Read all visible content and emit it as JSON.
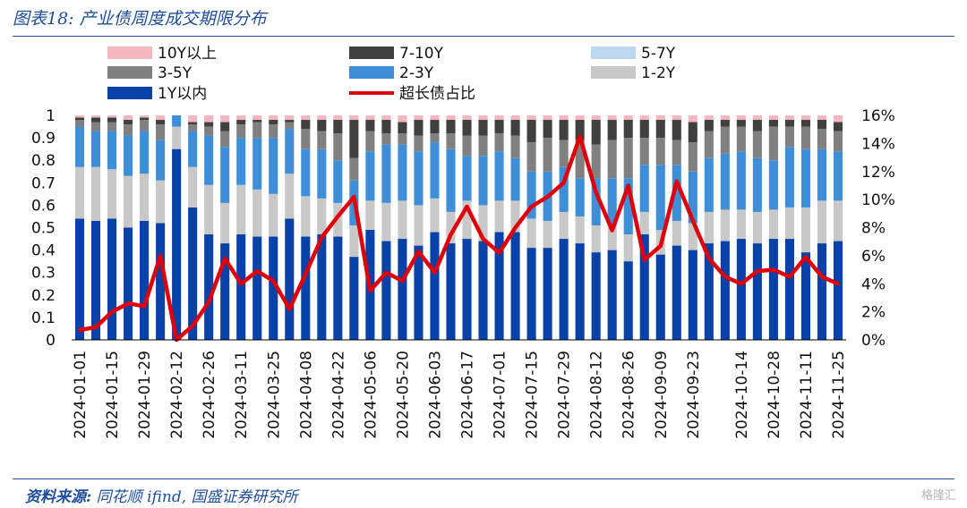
{
  "header": {
    "title": "图表18:  产业债周度成交期限分布"
  },
  "footer": {
    "source_label": "资料来源:",
    "source_text": " 同花顺 ifind, 国盛证券研究所",
    "watermark": "格隆汇"
  },
  "colors": {
    "10Y以上": "#f4b6bf",
    "7-10Y": "#404040",
    "5-7Y": "#bcd7ef",
    "3-5Y": "#808080",
    "2-3Y": "#3f8fd8",
    "1-2Y": "#c8c8c8",
    "1Y以内": "#0841a8",
    "超长债占比": "#e0000a",
    "rule": "#1f4e9b"
  },
  "chart_data": {
    "type": "bar",
    "subtype": "stacked-100-with-line-secondary-axis",
    "title": "",
    "categories": [
      "2024-01-01",
      "2024-01-08",
      "2024-01-15",
      "2024-01-22",
      "2024-01-29",
      "2024-02-05",
      "2024-02-12",
      "2024-02-19",
      "2024-02-26",
      "2024-03-04",
      "2024-03-11",
      "2024-03-18",
      "2024-03-25",
      "2024-04-01",
      "2024-04-08",
      "2024-04-15",
      "2024-04-22",
      "2024-04-29",
      "2024-05-06",
      "2024-05-13",
      "2024-05-20",
      "2024-05-27",
      "2024-06-03",
      "2024-06-10",
      "2024-06-17",
      "2024-06-24",
      "2024-07-01",
      "2024-07-08",
      "2024-07-15",
      "2024-07-22",
      "2024-07-29",
      "2024-08-05",
      "2024-08-12",
      "2024-08-19",
      "2024-08-26",
      "2024-09-02",
      "2024-09-09",
      "2024-09-16",
      "2024-09-23",
      "2024-09-30",
      "2024-10-07",
      "2024-10-14",
      "2024-10-21",
      "2024-10-28",
      "2024-11-04",
      "2024-11-11",
      "2024-11-18",
      "2024-11-25"
    ],
    "x_tick_labels": [
      "2024-01-01",
      "2024-01-15",
      "2024-01-29",
      "2024-02-12",
      "2024-02-26",
      "2024-03-11",
      "2024-03-25",
      "2024-04-08",
      "2024-04-22",
      "2024-05-06",
      "2024-05-20",
      "2024-06-03",
      "2024-06-17",
      "2024-07-01",
      "2024-07-15",
      "2024-07-29",
      "2024-08-12",
      "2024-08-26",
      "2024-09-09",
      "2024-09-23",
      "2024-10-14",
      "2024-10-28",
      "2024-11-11",
      "2024-11-25"
    ],
    "ylim": [
      0,
      1
    ],
    "y_ticks": [
      "0",
      "0.1",
      "0.2",
      "0.3",
      "0.4",
      "0.5",
      "0.6",
      "0.7",
      "0.8",
      "0.9",
      "1"
    ],
    "y2lim": [
      0,
      0.16
    ],
    "y2_ticks": [
      "0%",
      "2%",
      "4%",
      "6%",
      "8%",
      "10%",
      "12%",
      "14%",
      "16%"
    ],
    "legend_position": "top",
    "series": [
      {
        "name": "1Y以内",
        "values": [
          0.54,
          0.53,
          0.54,
          0.5,
          0.53,
          0.52,
          0.85,
          0.59,
          0.47,
          0.43,
          0.47,
          0.46,
          0.46,
          0.54,
          0.46,
          0.47,
          0.46,
          0.37,
          0.49,
          0.44,
          0.45,
          0.42,
          0.48,
          0.43,
          0.45,
          0.44,
          0.48,
          0.48,
          0.41,
          0.41,
          0.45,
          0.43,
          0.39,
          0.4,
          0.35,
          0.47,
          0.38,
          0.42,
          0.4,
          0.43,
          0.44,
          0.45,
          0.43,
          0.45,
          0.45,
          0.39,
          0.43,
          0.44
        ]
      },
      {
        "name": "1-2Y",
        "values": [
          0.23,
          0.24,
          0.22,
          0.23,
          0.21,
          0.19,
          0.1,
          0.18,
          0.22,
          0.18,
          0.22,
          0.21,
          0.19,
          0.2,
          0.18,
          0.16,
          0.15,
          0.14,
          0.13,
          0.17,
          0.17,
          0.18,
          0.15,
          0.14,
          0.17,
          0.16,
          0.14,
          0.14,
          0.13,
          0.12,
          0.12,
          0.12,
          0.12,
          0.11,
          0.12,
          0.1,
          0.11,
          0.11,
          0.12,
          0.14,
          0.14,
          0.13,
          0.14,
          0.13,
          0.14,
          0.2,
          0.19,
          0.18
        ]
      },
      {
        "name": "2-3Y",
        "values": [
          0.18,
          0.16,
          0.17,
          0.18,
          0.19,
          0.18,
          0.05,
          0.16,
          0.22,
          0.25,
          0.21,
          0.23,
          0.25,
          0.2,
          0.21,
          0.22,
          0.19,
          0.2,
          0.22,
          0.26,
          0.25,
          0.24,
          0.25,
          0.28,
          0.2,
          0.22,
          0.22,
          0.19,
          0.21,
          0.22,
          0.2,
          0.17,
          0.21,
          0.21,
          0.25,
          0.21,
          0.29,
          0.25,
          0.23,
          0.24,
          0.25,
          0.26,
          0.24,
          0.22,
          0.27,
          0.26,
          0.23,
          0.22
        ]
      },
      {
        "name": "3-5Y",
        "values": [
          0.03,
          0.04,
          0.04,
          0.05,
          0.05,
          0.07,
          0.0,
          0.03,
          0.04,
          0.07,
          0.06,
          0.07,
          0.06,
          0.03,
          0.09,
          0.08,
          0.12,
          0.1,
          0.09,
          0.05,
          0.05,
          0.07,
          0.04,
          0.07,
          0.09,
          0.09,
          0.08,
          0.1,
          0.13,
          0.15,
          0.12,
          0.17,
          0.15,
          0.17,
          0.18,
          0.12,
          0.12,
          0.11,
          0.13,
          0.12,
          0.12,
          0.11,
          0.12,
          0.15,
          0.09,
          0.1,
          0.09,
          0.09
        ]
      },
      {
        "name": "5-7Y",
        "values": [
          0.0,
          0.0,
          0.0,
          0.0,
          0.0,
          0.0,
          0.0,
          0.0,
          0.0,
          0.0,
          0.0,
          0.0,
          0.0,
          0.0,
          0.0,
          0.0,
          0.0,
          0.0,
          0.0,
          0.0,
          0.0,
          0.0,
          0.0,
          0.0,
          0.0,
          0.0,
          0.0,
          0.0,
          0.0,
          0.0,
          0.0,
          0.0,
          0.0,
          0.0,
          0.0,
          0.0,
          0.0,
          0.0,
          0.0,
          0.0,
          0.0,
          0.0,
          0.0,
          0.0,
          0.0,
          0.0,
          0.0,
          0.0
        ]
      },
      {
        "name": "7-10Y",
        "values": [
          0.01,
          0.02,
          0.02,
          0.02,
          0.01,
          0.02,
          0.0,
          0.01,
          0.02,
          0.04,
          0.02,
          0.01,
          0.02,
          0.01,
          0.04,
          0.05,
          0.06,
          0.17,
          0.05,
          0.06,
          0.05,
          0.07,
          0.06,
          0.06,
          0.07,
          0.07,
          0.06,
          0.07,
          0.1,
          0.08,
          0.09,
          0.09,
          0.11,
          0.09,
          0.08,
          0.08,
          0.08,
          0.09,
          0.09,
          0.05,
          0.03,
          0.03,
          0.05,
          0.03,
          0.03,
          0.03,
          0.04,
          0.04
        ]
      },
      {
        "name": "10Y以上",
        "values": [
          0.01,
          0.01,
          0.01,
          0.02,
          0.01,
          0.02,
          0.0,
          0.03,
          0.03,
          0.03,
          0.02,
          0.02,
          0.02,
          0.02,
          0.02,
          0.02,
          0.02,
          0.02,
          0.02,
          0.02,
          0.03,
          0.02,
          0.02,
          0.02,
          0.02,
          0.02,
          0.02,
          0.02,
          0.02,
          0.02,
          0.02,
          0.02,
          0.02,
          0.02,
          0.02,
          0.02,
          0.02,
          0.02,
          0.03,
          0.02,
          0.02,
          0.02,
          0.02,
          0.02,
          0.02,
          0.02,
          0.02,
          0.03
        ]
      }
    ],
    "line_series": {
      "name": "超长债占比",
      "axis": "right",
      "values": [
        0.007,
        0.009,
        0.02,
        0.026,
        0.024,
        0.06,
        0.0,
        0.01,
        0.027,
        0.058,
        0.04,
        0.049,
        0.042,
        0.022,
        0.047,
        0.073,
        0.088,
        0.102,
        0.035,
        0.048,
        0.042,
        0.063,
        0.048,
        0.075,
        0.095,
        0.072,
        0.062,
        0.08,
        0.095,
        0.102,
        0.112,
        0.145,
        0.105,
        0.078,
        0.11,
        0.057,
        0.067,
        0.113,
        0.085,
        0.058,
        0.045,
        0.04,
        0.049,
        0.05,
        0.045,
        0.059,
        0.045,
        0.04
      ]
    }
  }
}
